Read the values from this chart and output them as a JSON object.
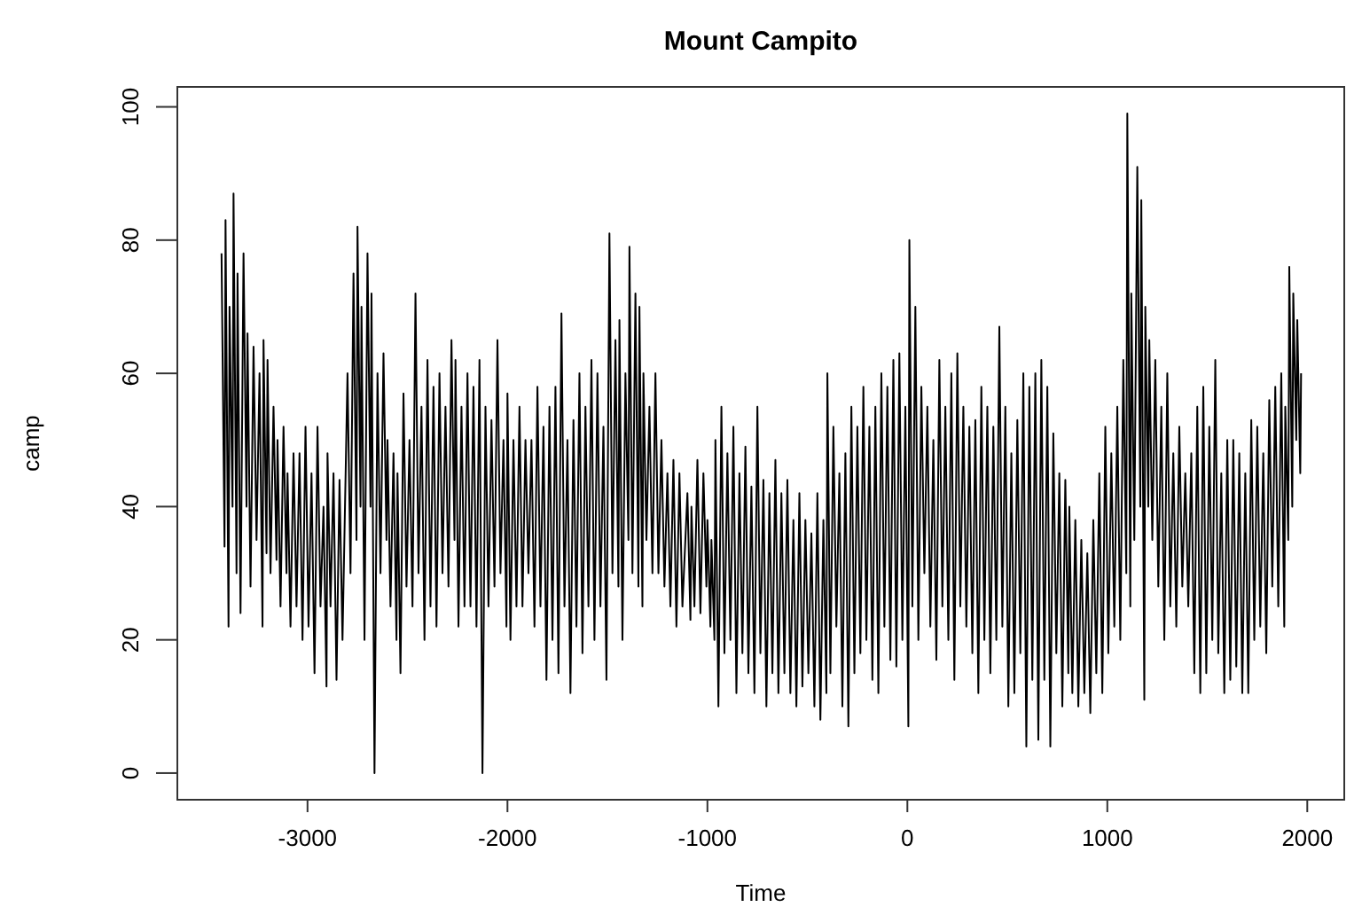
{
  "chart_data": {
    "type": "line",
    "title": "Mount Campito",
    "xlabel": "Time",
    "ylabel": "camp",
    "xlim": [
      -3651,
      2185
    ],
    "ylim": [
      -4,
      103
    ],
    "xticks": [
      -3000,
      -2000,
      -1000,
      0,
      1000,
      2000
    ],
    "yticks": [
      0,
      20,
      40,
      60,
      80,
      100
    ],
    "grid": false,
    "marker": "none",
    "line_style": "solid",
    "series": [
      {
        "color": "#000000",
        "x": [
          -3430,
          -3415,
          -3410,
          -3395,
          -3390,
          -3375,
          -3370,
          -3355,
          -3350,
          -3335,
          -3320,
          -3305,
          -3300,
          -3285,
          -3270,
          -3255,
          -3240,
          -3225,
          -3220,
          -3205,
          -3200,
          -3185,
          -3170,
          -3155,
          -3150,
          -3135,
          -3120,
          -3105,
          -3100,
          -3085,
          -3070,
          -3055,
          -3040,
          -3025,
          -3010,
          -2995,
          -2980,
          -2965,
          -2950,
          -2935,
          -2920,
          -2905,
          -2900,
          -2885,
          -2870,
          -2855,
          -2840,
          -2825,
          -2800,
          -2785,
          -2770,
          -2755,
          -2750,
          -2735,
          -2730,
          -2715,
          -2700,
          -2685,
          -2680,
          -2665,
          -2650,
          -2635,
          -2620,
          -2605,
          -2600,
          -2585,
          -2570,
          -2555,
          -2550,
          -2535,
          -2520,
          -2505,
          -2490,
          -2475,
          -2460,
          -2445,
          -2430,
          -2415,
          -2400,
          -2385,
          -2370,
          -2355,
          -2340,
          -2325,
          -2310,
          -2295,
          -2280,
          -2265,
          -2260,
          -2245,
          -2230,
          -2215,
          -2200,
          -2185,
          -2170,
          -2155,
          -2140,
          -2125,
          -2110,
          -2095,
          -2080,
          -2065,
          -2050,
          -2035,
          -2020,
          -2005,
          -2000,
          -1985,
          -1970,
          -1955,
          -1940,
          -1925,
          -1910,
          -1895,
          -1880,
          -1865,
          -1850,
          -1835,
          -1820,
          -1805,
          -1790,
          -1775,
          -1760,
          -1745,
          -1730,
          -1715,
          -1700,
          -1685,
          -1670,
          -1655,
          -1640,
          -1625,
          -1610,
          -1595,
          -1580,
          -1565,
          -1550,
          -1535,
          -1520,
          -1505,
          -1490,
          -1475,
          -1460,
          -1445,
          -1440,
          -1425,
          -1410,
          -1395,
          -1390,
          -1375,
          -1360,
          -1345,
          -1340,
          -1325,
          -1320,
          -1305,
          -1290,
          -1275,
          -1260,
          -1245,
          -1230,
          -1215,
          -1200,
          -1185,
          -1170,
          -1155,
          -1140,
          -1125,
          -1100,
          -1085,
          -1080,
          -1065,
          -1050,
          -1035,
          -1020,
          -1005,
          -1000,
          -985,
          -980,
          -965,
          -960,
          -945,
          -930,
          -915,
          -900,
          -885,
          -870,
          -855,
          -840,
          -825,
          -810,
          -795,
          -780,
          -765,
          -750,
          -735,
          -720,
          -705,
          -690,
          -675,
          -660,
          -645,
          -630,
          -615,
          -600,
          -585,
          -570,
          -555,
          -540,
          -525,
          -510,
          -495,
          -480,
          -465,
          -450,
          -435,
          -420,
          -405,
          -400,
          -385,
          -370,
          -355,
          -340,
          -325,
          -310,
          -295,
          -280,
          -265,
          -250,
          -235,
          -220,
          -205,
          -190,
          -175,
          -160,
          -145,
          -130,
          -115,
          -100,
          -85,
          -70,
          -55,
          -40,
          -25,
          -10,
          5,
          10,
          25,
          40,
          55,
          70,
          85,
          100,
          115,
          130,
          145,
          160,
          175,
          190,
          205,
          220,
          235,
          250,
          265,
          280,
          295,
          310,
          325,
          340,
          355,
          370,
          385,
          400,
          415,
          430,
          445,
          460,
          475,
          490,
          505,
          520,
          535,
          550,
          565,
          580,
          595,
          610,
          625,
          640,
          655,
          670,
          685,
          700,
          715,
          730,
          745,
          760,
          775,
          790,
          805,
          810,
          825,
          840,
          855,
          870,
          885,
          900,
          915,
          930,
          945,
          960,
          975,
          990,
          1005,
          1020,
          1035,
          1050,
          1065,
          1080,
          1095,
          1100,
          1115,
          1120,
          1135,
          1150,
          1165,
          1170,
          1185,
          1190,
          1205,
          1210,
          1225,
          1240,
          1255,
          1270,
          1285,
          1300,
          1315,
          1330,
          1345,
          1360,
          1375,
          1390,
          1405,
          1420,
          1435,
          1450,
          1465,
          1480,
          1495,
          1510,
          1525,
          1540,
          1555,
          1570,
          1585,
          1600,
          1615,
          1630,
          1645,
          1660,
          1675,
          1690,
          1705,
          1720,
          1735,
          1750,
          1765,
          1780,
          1795,
          1810,
          1825,
          1840,
          1855,
          1870,
          1885,
          1890,
          1905,
          1910,
          1925,
          1930,
          1945,
          1950,
          1965,
          1969
        ],
        "values": [
          78,
          34,
          83,
          22,
          70,
          40,
          87,
          30,
          75,
          24,
          78,
          40,
          66,
          28,
          64,
          35,
          60,
          22,
          65,
          33,
          62,
          30,
          55,
          32,
          50,
          25,
          52,
          30,
          45,
          22,
          48,
          25,
          48,
          20,
          52,
          22,
          45,
          15,
          52,
          25,
          40,
          13,
          48,
          25,
          45,
          14,
          44,
          20,
          60,
          30,
          75,
          35,
          82,
          40,
          70,
          20,
          78,
          40,
          72,
          0,
          60,
          30,
          63,
          35,
          50,
          25,
          48,
          20,
          45,
          15,
          57,
          28,
          50,
          25,
          72,
          30,
          55,
          20,
          62,
          25,
          58,
          22,
          60,
          30,
          55,
          28,
          65,
          35,
          62,
          22,
          55,
          25,
          60,
          25,
          58,
          22,
          62,
          0,
          55,
          25,
          53,
          28,
          65,
          30,
          50,
          22,
          57,
          20,
          50,
          25,
          55,
          25,
          50,
          30,
          50,
          22,
          58,
          25,
          52,
          14,
          55,
          20,
          58,
          15,
          69,
          25,
          50,
          12,
          53,
          22,
          60,
          18,
          55,
          25,
          62,
          20,
          60,
          25,
          52,
          14,
          81,
          30,
          65,
          28,
          68,
          20,
          60,
          35,
          79,
          30,
          72,
          28,
          70,
          25,
          60,
          35,
          55,
          30,
          60,
          30,
          50,
          28,
          45,
          25,
          47,
          22,
          45,
          25,
          42,
          23,
          40,
          25,
          47,
          24,
          45,
          28,
          38,
          22,
          35,
          20,
          50,
          10,
          55,
          18,
          48,
          20,
          52,
          12,
          45,
          18,
          49,
          15,
          43,
          12,
          55,
          18,
          44,
          10,
          42,
          15,
          47,
          12,
          42,
          15,
          44,
          12,
          38,
          10,
          42,
          13,
          38,
          15,
          36,
          10,
          42,
          8,
          38,
          12,
          60,
          15,
          52,
          22,
          45,
          10,
          48,
          7,
          55,
          15,
          52,
          18,
          58,
          20,
          52,
          14,
          55,
          12,
          60,
          22,
          58,
          17,
          62,
          16,
          63,
          20,
          55,
          7,
          80,
          25,
          70,
          20,
          58,
          30,
          55,
          22,
          50,
          17,
          62,
          25,
          55,
          20,
          60,
          14,
          63,
          25,
          55,
          22,
          52,
          18,
          53,
          12,
          58,
          20,
          55,
          15,
          52,
          20,
          67,
          22,
          55,
          10,
          48,
          12,
          53,
          18,
          60,
          4,
          58,
          14,
          60,
          5,
          62,
          14,
          58,
          4,
          51,
          18,
          45,
          10,
          44,
          15,
          40,
          12,
          38,
          10,
          35,
          12,
          33,
          9,
          38,
          15,
          45,
          12,
          52,
          18,
          48,
          22,
          55,
          20,
          62,
          30,
          99,
          25,
          72,
          35,
          91,
          40,
          86,
          11,
          70,
          40,
          65,
          35,
          62,
          28,
          55,
          20,
          60,
          25,
          48,
          22,
          52,
          28,
          45,
          25,
          48,
          15,
          55,
          12,
          58,
          15,
          52,
          20,
          62,
          18,
          45,
          12,
          50,
          14,
          50,
          16,
          48,
          12,
          45,
          12,
          53,
          20,
          52,
          22,
          48,
          18,
          56,
          28,
          58,
          25,
          60,
          22,
          55,
          35,
          76,
          40,
          72,
          50,
          68,
          45,
          60
        ]
      }
    ]
  }
}
